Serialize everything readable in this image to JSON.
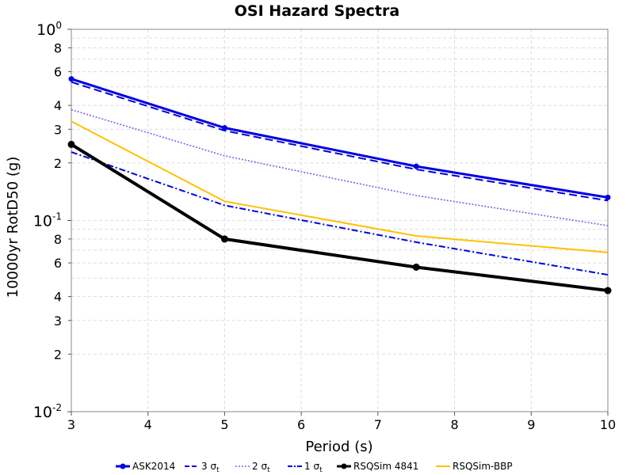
{
  "chart_data": {
    "type": "line",
    "title": "OSI Hazard Spectra",
    "xlabel": "Period (s)",
    "ylabel": "10000yr RotD50 (g)",
    "xlim": [
      3,
      10
    ],
    "ylim": [
      0.01,
      1
    ],
    "yscale": "log",
    "grid": true,
    "legend_position": "bottom",
    "x_ticks": [
      "3",
      "4",
      "5",
      "6",
      "7",
      "8",
      "9",
      "10"
    ],
    "y_decade_labels": [
      {
        "value": 0.01,
        "base": "10",
        "exp": "-2"
      },
      {
        "value": 0.1,
        "base": "10",
        "exp": "-1"
      },
      {
        "value": 1,
        "base": "10",
        "exp": "0"
      }
    ],
    "y_minor_labels": [
      {
        "value": 0.02,
        "label": "2"
      },
      {
        "value": 0.03,
        "label": "3"
      },
      {
        "value": 0.04,
        "label": "4"
      },
      {
        "value": 0.06,
        "label": "6"
      },
      {
        "value": 0.08,
        "label": "8"
      },
      {
        "value": 0.2,
        "label": "2"
      },
      {
        "value": 0.3,
        "label": "3"
      },
      {
        "value": 0.4,
        "label": "4"
      },
      {
        "value": 0.6,
        "label": "6"
      },
      {
        "value": 0.8,
        "label": "8"
      }
    ],
    "x": [
      3,
      5,
      7.5,
      10
    ],
    "series": [
      {
        "name": "ASK2014",
        "sigma": "",
        "values": [
          0.55,
          0.305,
          0.192,
          0.132
        ],
        "color": "#0000e0",
        "style": "solid",
        "width": 3,
        "markers": true,
        "marker_size": 3.5
      },
      {
        "name": "3 σ",
        "sigma": "t",
        "values": [
          0.53,
          0.295,
          0.185,
          0.127
        ],
        "color": "#0000e0",
        "style": "dashed",
        "width": 2,
        "markers": false
      },
      {
        "name": "2 σ",
        "sigma": "t",
        "values": [
          0.38,
          0.218,
          0.135,
          0.094
        ],
        "color": "#6a6ae8",
        "style": "dotted",
        "width": 1.6,
        "markers": false
      },
      {
        "name": "1 σ",
        "sigma": "t",
        "values": [
          0.228,
          0.12,
          0.077,
          0.052
        ],
        "color": "#0000e0",
        "style": "dashdot",
        "width": 2,
        "markers": false
      },
      {
        "name": "RSQSim 4841",
        "sigma": "",
        "values": [
          0.25,
          0.08,
          0.057,
          0.043
        ],
        "color": "#000000",
        "style": "solid",
        "width": 4,
        "markers": true,
        "marker_size": 4.5
      },
      {
        "name": "RSQSim-BBP",
        "sigma": "",
        "values": [
          0.33,
          0.126,
          0.083,
          0.068
        ],
        "color": "#ffc000",
        "style": "solid",
        "width": 2,
        "markers": false
      }
    ]
  }
}
